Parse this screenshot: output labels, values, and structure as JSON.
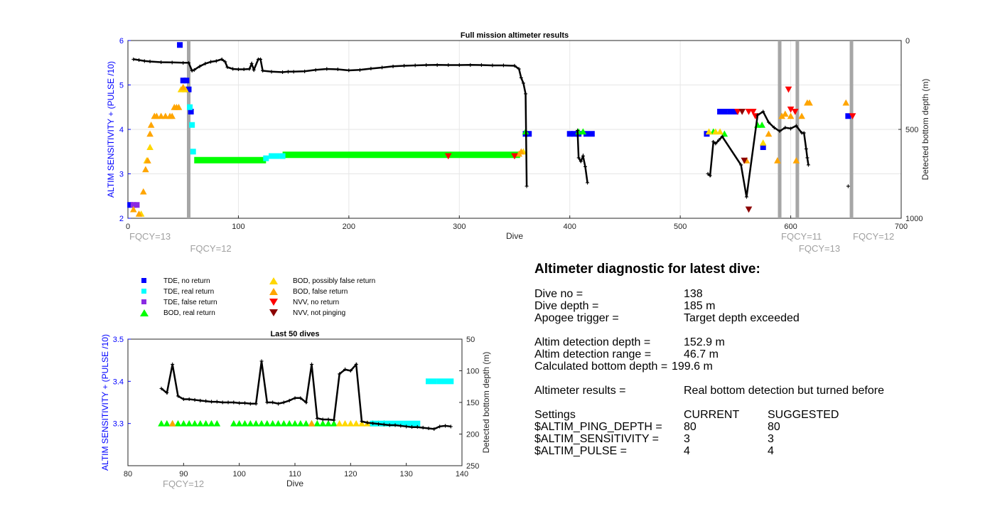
{
  "top_chart": {
    "title": "Full mission altimeter results",
    "xlabel": "Dive",
    "ylabel_left": "ALTIM SENSITIVITY + (PULSE /10)",
    "ylabel_right": "Detected bottom depth (m)",
    "xlim": [
      0,
      700
    ],
    "ylim_left": [
      2,
      6
    ],
    "ylim_right": [
      1000,
      0
    ],
    "xticks": [
      "0",
      "100",
      "200",
      "300",
      "400",
      "500",
      "600",
      "700"
    ],
    "yticks_left": [
      "2",
      "3",
      "4",
      "5",
      "6"
    ],
    "yticks_right": [
      "0",
      "500",
      "1000"
    ],
    "fqcy_labels": [
      {
        "text": "FQCY=13",
        "dive": 0,
        "row": 1
      },
      {
        "text": "FQCY=12",
        "dive": 55,
        "row": 2
      },
      {
        "text": "FQCY=11",
        "dive": 590,
        "row": 1
      },
      {
        "text": "FQCY=13",
        "dive": 606,
        "row": 2
      },
      {
        "text": "FQCY=12",
        "dive": 655,
        "row": 1
      }
    ],
    "vlines": [
      55,
      590,
      606,
      655
    ],
    "colors": {
      "axis_left": "#0000ff",
      "vline": "#a6a6a6",
      "fqcy": "#a0a0a0"
    }
  },
  "bottom_chart": {
    "title": "Last 50 dives",
    "xlabel": "Dive",
    "ylabel_left": "ALTIM SENSITIVITY + (PULSE /10)",
    "ylabel_right": "Detected bottom depth (m)",
    "xlim": [
      80,
      140
    ],
    "ylim_left": [
      3.2,
      3.5
    ],
    "ylim_right": [
      250,
      50
    ],
    "xticks": [
      "80",
      "90",
      "100",
      "110",
      "120",
      "130",
      "140"
    ],
    "yticks_left": [
      "3.3",
      "3.4",
      "3.5"
    ],
    "yticks_right": [
      "50",
      "100",
      "150",
      "200",
      "250"
    ],
    "fqcy_labels": [
      {
        "text": "FQCY=12",
        "dive": 86,
        "row": 1
      }
    ]
  },
  "legend": [
    {
      "label": "TDE, no return",
      "marker": "square",
      "color": "#0000ff"
    },
    {
      "label": "TDE, real return",
      "marker": "square",
      "color": "#00ffff"
    },
    {
      "label": "TDE, false return",
      "marker": "square",
      "color": "#8a2be2"
    },
    {
      "label": "BOD, real return",
      "marker": "tri-up",
      "color": "#00ff00"
    },
    {
      "label": "BOD, possibly false return",
      "marker": "tri-up",
      "color": "#ffd700"
    },
    {
      "label": "BOD, false return",
      "marker": "tri-up",
      "color": "#ffa500"
    },
    {
      "label": "NVV, no return",
      "marker": "tri-down",
      "color": "#ff0000"
    },
    {
      "label": "NVV, not pinging",
      "marker": "tri-down",
      "color": "#8b0000"
    }
  ],
  "diagnostic": {
    "title": "Altimeter diagnostic for latest dive:",
    "dive_no_label": "Dive no =",
    "dive_no": "138",
    "dive_depth_label": "Dive depth =",
    "dive_depth": "185 m",
    "apogee_label": "Apogee trigger =",
    "apogee": "Target depth exceeded",
    "det_depth_label": "Altim detection depth =",
    "det_depth": "152.9 m",
    "det_range_label": "Altim detection range =",
    "det_range": "46.7 m",
    "calc_depth_label": "Calculated bottom depth =",
    "calc_depth": "199.6 m",
    "results_label": "Altimeter results =",
    "results": "Real bottom detection but turned before",
    "settings_label": "Settings",
    "current_label": "CURRENT",
    "suggested_label": "SUGGESTED",
    "ping_label": "$ALTIM_PING_DEPTH =",
    "ping_cur": "80",
    "ping_sug": "80",
    "sens_label": "$ALTIM_SENSITIVITY =",
    "sens_cur": "3",
    "sens_sug": "3",
    "pulse_label": "$ALTIM_PULSE =",
    "pulse_cur": "4",
    "pulse_sug": "4"
  },
  "chart_data": [
    {
      "type": "scatter",
      "title": "Full mission altimeter results",
      "xlabel": "Dive",
      "ylabel": "ALTIM SENSITIVITY + (PULSE /10)",
      "y2label": "Detected bottom depth (m)",
      "xlim": [
        0,
        700
      ],
      "ylim": [
        2,
        6
      ],
      "y2lim": [
        1000,
        0
      ],
      "grid": true,
      "marker_series": [
        {
          "name": "TDE, no return",
          "points": [
            [
              2,
              2.3
            ],
            [
              47,
              5.9
            ],
            [
              50,
              5.1
            ],
            [
              53,
              5.1
            ],
            [
              55,
              4.9
            ],
            [
              57,
              4.4
            ],
            [
              360,
              3.9
            ],
            [
              363,
              3.9
            ],
            [
              400,
              3.9
            ],
            [
              404,
              3.9
            ],
            [
              408,
              3.9
            ],
            [
              415,
              3.9
            ],
            [
              420,
              3.9
            ],
            [
              524,
              3.9
            ],
            [
              536,
              4.4
            ],
            [
              540,
              4.4
            ],
            [
              545,
              4.4
            ],
            [
              550,
              4.4
            ],
            [
              575,
              3.6
            ],
            [
              652,
              4.3
            ]
          ]
        },
        {
          "name": "TDE, real return",
          "points": [
            [
              56,
              4.5
            ],
            [
              58,
              4.1
            ],
            [
              59,
              3.5
            ],
            [
              125,
              3.35
            ],
            [
              130,
              3.4
            ],
            [
              135,
              3.4
            ],
            [
              140,
              3.4
            ]
          ]
        },
        {
          "name": "TDE, false return",
          "points": [
            [
              5,
              2.3
            ],
            [
              8,
              2.3
            ]
          ]
        },
        {
          "name": "BOD, real return",
          "points": [
            [
              360,
              3.95
            ],
            [
              408,
              3.95
            ],
            [
              412,
              3.95
            ],
            [
              530,
              3.95
            ],
            [
              540,
              3.9
            ],
            [
              570,
              4.1
            ],
            [
              574,
              4.1
            ]
          ]
        },
        {
          "name": "BOD, possibly false return",
          "points": [
            [
              12,
              2.1
            ],
            [
              17,
              3.3
            ],
            [
              20,
              3.6
            ],
            [
              48,
              4.9
            ],
            [
              52,
              4.9
            ],
            [
              358,
              3.5
            ],
            [
              526,
              3.95
            ],
            [
              532,
              3.95
            ],
            [
              536,
              3.95
            ],
            [
              575,
              3.7
            ]
          ]
        },
        {
          "name": "BOD, false return",
          "points": [
            [
              5,
              2.2
            ],
            [
              10,
              2.1
            ],
            [
              14,
              2.6
            ],
            [
              16,
              3.1
            ],
            [
              18,
              3.3
            ],
            [
              20,
              3.9
            ],
            [
              21,
              4.1
            ],
            [
              24,
              4.3
            ],
            [
              26,
              4.3
            ],
            [
              30,
              4.3
            ],
            [
              34,
              4.3
            ],
            [
              38,
              4.3
            ],
            [
              40,
              4.3
            ],
            [
              42,
              4.5
            ],
            [
              44,
              4.5
            ],
            [
              46,
              4.5
            ],
            [
              50,
              4.95
            ],
            [
              354,
              3.45
            ],
            [
              356,
              3.5
            ],
            [
              560,
              3.3
            ],
            [
              580,
              3.9
            ],
            [
              588,
              3.3
            ],
            [
              592,
              4.3
            ],
            [
              595,
              4.35
            ],
            [
              600,
              4.3
            ],
            [
              605,
              3.3
            ],
            [
              610,
              4.3
            ],
            [
              615,
              4.6
            ],
            [
              617,
              4.6
            ],
            [
              650,
              4.6
            ]
          ]
        },
        {
          "name": "NVV, no return",
          "points": [
            [
              290,
              3.4
            ],
            [
              350,
              3.4
            ],
            [
              552,
              4.4
            ],
            [
              562,
              4.4
            ],
            [
              566,
              4.4
            ],
            [
              568,
              4.3
            ],
            [
              598,
              4.9
            ],
            [
              600,
              4.45
            ],
            [
              604,
              4.4
            ],
            [
              656,
              4.3
            ]
          ]
        },
        {
          "name": "NVV, not pinging",
          "points": [
            [
              556,
              4.4
            ],
            [
              558,
              3.3
            ],
            [
              562,
              2.2
            ]
          ]
        }
      ],
      "green_band": {
        "name": "BOD, real return",
        "segments": [
          [
            60,
            125,
            3.3
          ],
          [
            140,
            355,
            3.42
          ]
        ]
      },
      "depth_series_approx": {
        "name": "Detected bottom depth (m)",
        "points": [
          [
            5,
            105
          ],
          [
            10,
            110
          ],
          [
            15,
            115
          ],
          [
            20,
            118
          ],
          [
            30,
            122
          ],
          [
            40,
            123
          ],
          [
            50,
            125
          ],
          [
            55,
            125
          ],
          [
            58,
            170
          ],
          [
            60,
            165
          ],
          [
            65,
            145
          ],
          [
            70,
            130
          ],
          [
            75,
            120
          ],
          [
            80,
            115
          ],
          [
            85,
            105
          ],
          [
            88,
            120
          ],
          [
            90,
            150
          ],
          [
            95,
            160
          ],
          [
            100,
            162
          ],
          [
            105,
            162
          ],
          [
            110,
            160
          ],
          [
            112,
            130
          ],
          [
            114,
            165
          ],
          [
            118,
            105
          ],
          [
            120,
            105
          ],
          [
            122,
            170
          ],
          [
            130,
            175
          ],
          [
            140,
            178
          ],
          [
            145,
            175
          ],
          [
            150,
            175
          ],
          [
            160,
            173
          ],
          [
            170,
            165
          ],
          [
            180,
            160
          ],
          [
            190,
            162
          ],
          [
            200,
            168
          ],
          [
            210,
            165
          ],
          [
            220,
            158
          ],
          [
            230,
            152
          ],
          [
            240,
            145
          ],
          [
            250,
            142
          ],
          [
            260,
            140
          ],
          [
            270,
            138
          ],
          [
            280,
            137
          ],
          [
            290,
            138
          ],
          [
            300,
            138
          ],
          [
            310,
            137
          ],
          [
            320,
            138
          ],
          [
            330,
            140
          ],
          [
            340,
            140
          ],
          [
            350,
            142
          ],
          [
            354,
            160
          ],
          [
            356,
            210
          ],
          [
            358,
            240
          ],
          [
            360,
            300
          ],
          [
            361,
            820
          ],
          [
            407,
            505
          ],
          [
            408,
            660
          ],
          [
            410,
            680
          ],
          [
            412,
            650
          ],
          [
            414,
            710
          ],
          [
            416,
            800
          ],
          [
            525,
            750
          ],
          [
            527,
            760
          ],
          [
            530,
            570
          ],
          [
            532,
            580
          ],
          [
            535,
            560
          ],
          [
            538,
            540
          ],
          [
            555,
            700
          ],
          [
            560,
            880
          ],
          [
            570,
            420
          ],
          [
            575,
            400
          ],
          [
            580,
            460
          ],
          [
            585,
            490
          ],
          [
            590,
            510
          ],
          [
            595,
            490
          ],
          [
            600,
            495
          ],
          [
            605,
            480
          ],
          [
            610,
            520
          ],
          [
            612,
            520
          ],
          [
            614,
            610
          ],
          [
            615,
            660
          ],
          [
            616,
            700
          ],
          [
            652,
            820
          ]
        ]
      }
    },
    {
      "type": "scatter",
      "title": "Last 50 dives",
      "xlabel": "Dive",
      "ylabel": "ALTIM SENSITIVITY + (PULSE /10)",
      "y2label": "Detected bottom depth (m)",
      "xlim": [
        80,
        140
      ],
      "ylim": [
        3.2,
        3.5
      ],
      "y2lim": [
        250,
        50
      ],
      "grid": false,
      "depth_series": {
        "name": "Detected bottom depth (m)",
        "x": [
          86,
          87,
          88,
          89,
          90,
          91,
          92,
          93,
          94,
          95,
          96,
          97,
          98,
          99,
          100,
          101,
          102,
          103,
          104,
          105,
          106,
          107,
          108,
          109,
          110,
          111,
          112,
          113,
          114,
          115,
          116,
          117,
          118,
          119,
          120,
          121,
          122,
          123,
          124,
          125,
          126,
          127,
          128,
          129,
          130,
          131,
          132,
          133,
          134,
          135,
          136,
          137,
          138
        ],
        "y": [
          128,
          135,
          90,
          140,
          145,
          145,
          146,
          147,
          148,
          149,
          149,
          150,
          150,
          150,
          151,
          151,
          152,
          152,
          85,
          150,
          150,
          152,
          150,
          147,
          143,
          143,
          150,
          90,
          175,
          177,
          177,
          178,
          105,
          98,
          100,
          90,
          180,
          182,
          183,
          184,
          185,
          186,
          186,
          187,
          188,
          189,
          189,
          190,
          191,
          192,
          188,
          187,
          188
        ]
      },
      "marker_series": [
        {
          "name": "BOD, real return",
          "x": [
            86,
            87,
            88,
            89,
            90,
            91,
            92,
            93,
            94,
            95,
            96,
            99,
            100,
            101,
            102,
            103,
            104,
            105,
            106,
            107,
            108,
            109,
            110,
            111,
            112,
            113,
            114,
            115,
            116,
            117,
            124,
            126
          ],
          "y": 3.3
        },
        {
          "name": "BOD, false return",
          "x": [
            88,
            113
          ],
          "y": 3.3
        },
        {
          "name": "BOD, possibly false return",
          "x": [
            118,
            119,
            120,
            121,
            122,
            123,
            125
          ],
          "y": 3.3
        },
        {
          "name": "TDE, real return",
          "x": [
            124,
            125,
            126,
            127,
            128,
            129,
            130,
            131,
            132
          ],
          "y": 3.3
        },
        {
          "name": "TDE, real return",
          "x": [
            134,
            135,
            136,
            137,
            138
          ],
          "y": 3.4
        }
      ]
    }
  ]
}
